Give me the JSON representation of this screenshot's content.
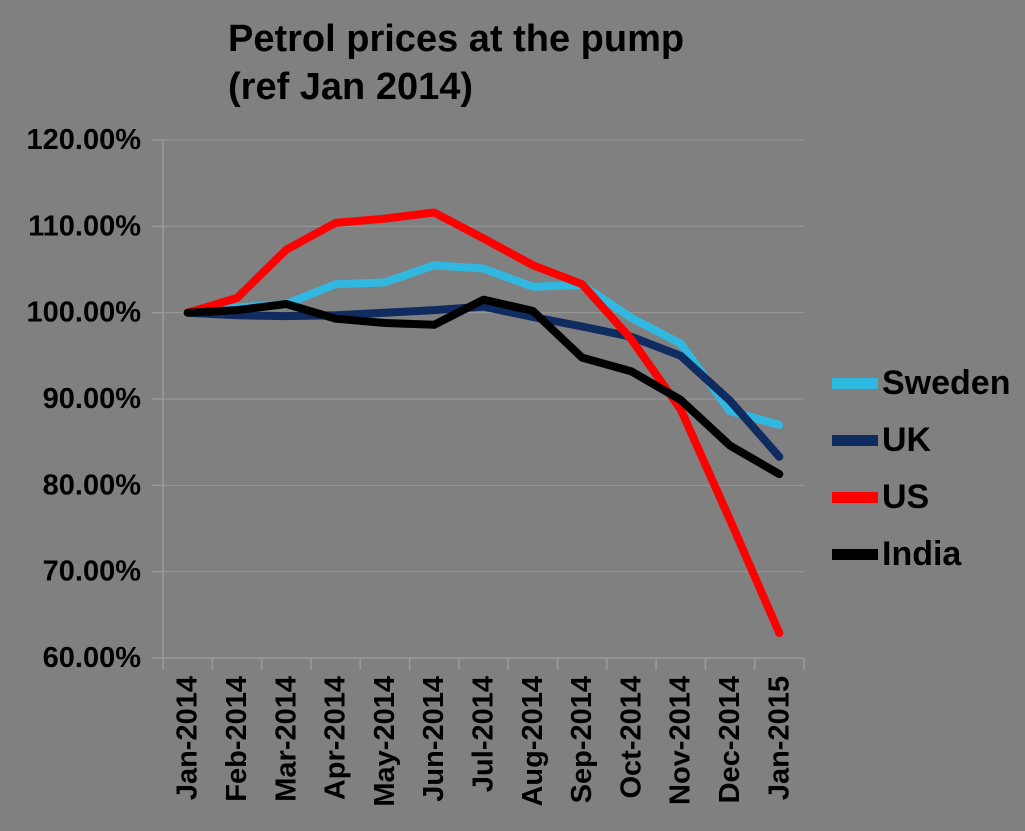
{
  "colors": {
    "background": "#808080",
    "gridline": "#9A9A9A",
    "axis": "#9A9A9A",
    "text": "#000000"
  },
  "chart_data": {
    "type": "line",
    "title": "Petrol prices at the pump (ref Jan 2014)",
    "title_lines": [
      "Petrol prices at the pump",
      "(ref Jan 2014)"
    ],
    "xlabel": "",
    "ylabel": "",
    "ylim": [
      60,
      120
    ],
    "grid": true,
    "legend_position": "right",
    "y_ticks": [
      {
        "label": "120.00%",
        "value": 120
      },
      {
        "label": "110.00%",
        "value": 110
      },
      {
        "label": "100.00%",
        "value": 100
      },
      {
        "label": "90.00%",
        "value": 90
      },
      {
        "label": "80.00%",
        "value": 80
      },
      {
        "label": "70.00%",
        "value": 70
      },
      {
        "label": "60.00%",
        "value": 60
      }
    ],
    "categories": [
      "Jan-2014",
      "Feb-2014",
      "Mar-2014",
      "Apr-2014",
      "May-2014",
      "Jun-2014",
      "Jul-2014",
      "Aug-2014",
      "Sep-2014",
      "Oct-2014",
      "Nov-2014",
      "Dec-2014",
      "Jan-2015"
    ],
    "series": [
      {
        "name": "Sweden",
        "color": "#30B8E0",
        "values": [
          100.0,
          100.6,
          101.0,
          103.3,
          103.5,
          105.5,
          105.1,
          103.0,
          103.2,
          99.4,
          96.4,
          88.6,
          87.0
        ]
      },
      {
        "name": "UK",
        "color": "#0F2B60",
        "values": [
          100.0,
          99.7,
          99.6,
          99.7,
          100.0,
          100.3,
          100.7,
          99.5,
          98.4,
          97.2,
          95.0,
          89.8,
          83.3
        ]
      },
      {
        "name": "US",
        "color": "#FE0000",
        "values": [
          100.0,
          101.7,
          107.3,
          110.4,
          110.9,
          111.6,
          108.6,
          105.5,
          103.3,
          96.9,
          88.8,
          76.0,
          62.9
        ]
      },
      {
        "name": "India",
        "color": "#000000",
        "values": [
          100.0,
          100.3,
          101.0,
          99.3,
          98.8,
          98.6,
          101.5,
          100.2,
          94.8,
          93.2,
          89.9,
          84.6,
          81.3
        ]
      }
    ]
  }
}
